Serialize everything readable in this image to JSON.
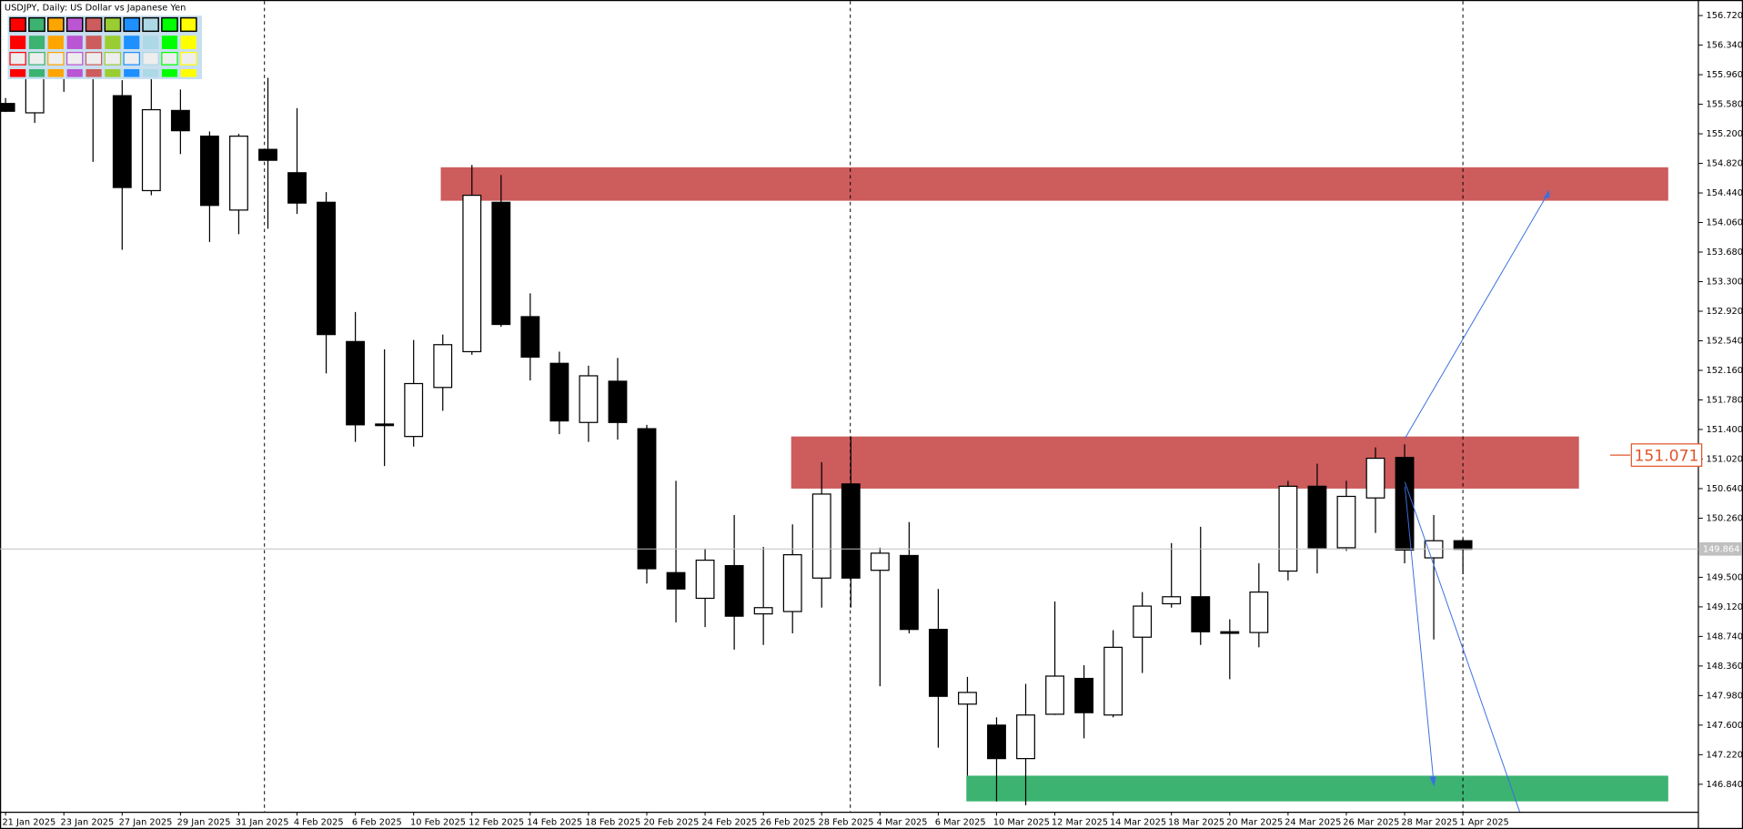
{
  "chart_data": {
    "type": "candlestick",
    "symbol": "USDJPY, Daily:  US Dollar vs Japanese Yen",
    "categories": [
      "21 Jan 2025",
      null,
      "23 Jan 2025",
      null,
      "27 Jan 2025",
      null,
      "29 Jan 2025",
      null,
      "31 Jan 2025",
      null,
      "4 Feb 2025",
      null,
      "6 Feb 2025",
      null,
      "10 Feb 2025",
      null,
      "12 Feb 2025",
      null,
      "14 Feb 2025",
      null,
      "18 Feb 2025",
      null,
      "20 Feb 2025",
      null,
      "24 Feb 2025",
      null,
      "26 Feb 2025",
      null,
      "28 Feb 2025",
      null,
      "4 Mar 2025",
      null,
      "6 Mar 2025",
      null,
      "10 Mar 2025",
      null,
      "12 Mar 2025",
      null,
      "14 Mar 2025",
      null,
      "18 Mar 2025",
      null,
      "20 Mar 2025",
      null,
      "24 Mar 2025",
      null,
      "26 Mar 2025",
      null,
      "28 Mar 2025",
      null,
      "1 Apr 2025"
    ],
    "open": [
      155.59,
      155.47,
      156.0,
      156.03,
      155.69,
      154.47,
      155.5,
      155.17,
      154.22,
      155.0,
      154.7,
      154.32,
      152.53,
      151.47,
      151.31,
      151.94,
      152.4,
      154.32,
      152.85,
      152.25,
      151.49,
      152.02,
      151.41,
      149.56,
      149.23,
      149.65,
      149.03,
      149.06,
      149.49,
      150.7,
      149.59,
      149.78,
      148.83,
      147.87,
      147.6,
      147.17,
      147.74,
      148.2,
      147.73,
      148.73,
      149.16,
      149.25,
      148.8,
      148.79,
      149.58,
      150.67,
      149.88,
      150.52,
      151.04,
      149.75,
      149.97
    ],
    "high": [
      155.66,
      156.35,
      156.4,
      156.13,
      155.89,
      156.06,
      155.77,
      155.23,
      155.2,
      155.92,
      155.53,
      154.45,
      152.91,
      152.43,
      152.55,
      152.62,
      154.8,
      154.67,
      153.15,
      152.4,
      152.22,
      152.32,
      151.46,
      150.74,
      149.87,
      150.3,
      149.89,
      150.18,
      150.98,
      151.31,
      149.88,
      150.21,
      149.35,
      148.22,
      147.7,
      148.13,
      149.19,
      148.37,
      148.82,
      149.31,
      149.94,
      150.15,
      148.96,
      149.68,
      150.74,
      150.96,
      150.74,
      151.17,
      151.21,
      150.3,
      150.0
    ],
    "low": [
      155.48,
      155.34,
      155.74,
      154.84,
      153.71,
      154.41,
      154.94,
      153.81,
      153.91,
      153.98,
      154.17,
      152.12,
      151.24,
      150.93,
      151.18,
      151.64,
      152.36,
      152.72,
      152.03,
      151.34,
      151.24,
      151.27,
      149.42,
      148.92,
      148.86,
      148.57,
      148.63,
      148.78,
      149.11,
      149.11,
      148.1,
      148.78,
      147.31,
      146.95,
      146.62,
      146.57,
      147.73,
      147.43,
      147.7,
      148.27,
      149.11,
      148.63,
      148.19,
      148.6,
      149.46,
      149.55,
      149.84,
      150.07,
      149.68,
      148.7,
      149.54
    ],
    "close": [
      155.49,
      156.06,
      156.1,
      155.92,
      154.51,
      155.51,
      155.24,
      154.28,
      155.17,
      154.86,
      154.31,
      152.62,
      151.46,
      151.45,
      151.99,
      152.49,
      154.41,
      152.75,
      152.33,
      151.51,
      152.09,
      151.49,
      149.61,
      149.35,
      149.72,
      149.0,
      149.11,
      149.79,
      150.57,
      149.49,
      149.81,
      148.83,
      147.97,
      148.02,
      147.17,
      147.73,
      148.23,
      147.76,
      148.6,
      149.13,
      149.25,
      148.8,
      148.78,
      149.31,
      150.67,
      149.88,
      150.54,
      151.03,
      149.85,
      149.97,
      149.86
    ],
    "up_color": "#ffffff",
    "down_color": "#000000",
    "ylim": [
      146.48,
      156.92
    ],
    "yticks": [
      {
        "value": 156.72,
        "label": "156.720"
      },
      {
        "value": 156.34,
        "label": "156.340"
      },
      {
        "value": 155.96,
        "label": "155.960"
      },
      {
        "value": 155.58,
        "label": "155.580"
      },
      {
        "value": 155.2,
        "label": "155.200"
      },
      {
        "value": 154.82,
        "label": "154.820"
      },
      {
        "value": 154.44,
        "label": "154.440"
      },
      {
        "value": 154.06,
        "label": "154.060"
      },
      {
        "value": 153.68,
        "label": "153.680"
      },
      {
        "value": 153.3,
        "label": "153.300"
      },
      {
        "value": 152.92,
        "label": "152.920"
      },
      {
        "value": 152.54,
        "label": "152.540"
      },
      {
        "value": 152.16,
        "label": "152.160"
      },
      {
        "value": 151.78,
        "label": "151.780"
      },
      {
        "value": 151.4,
        "label": "151.400"
      },
      {
        "value": 151.02,
        "label": "151.020"
      },
      {
        "value": 150.64,
        "label": "150.640"
      },
      {
        "value": 150.26,
        "label": "150.260"
      },
      {
        "value": 149.5,
        "label": "149.500"
      },
      {
        "value": 149.12,
        "label": "149.120"
      },
      {
        "value": 148.74,
        "label": "148.740"
      },
      {
        "value": 148.36,
        "label": "148.360"
      },
      {
        "value": 147.98,
        "label": "147.980"
      },
      {
        "value": 147.6,
        "label": "147.600"
      },
      {
        "value": 147.22,
        "label": "147.220"
      },
      {
        "value": 146.84,
        "label": "146.840"
      }
    ],
    "grid": false,
    "zones": [
      {
        "top": 154.77,
        "bottom": 154.34,
        "color": "#cd5c5c"
      },
      {
        "top": 151.31,
        "bottom": 150.64,
        "color": "#cd5c5c"
      },
      {
        "top": 146.95,
        "bottom": 146.62,
        "color": "#3cb371"
      }
    ],
    "current_price": 149.864,
    "price_label": 151.071
  }
}
